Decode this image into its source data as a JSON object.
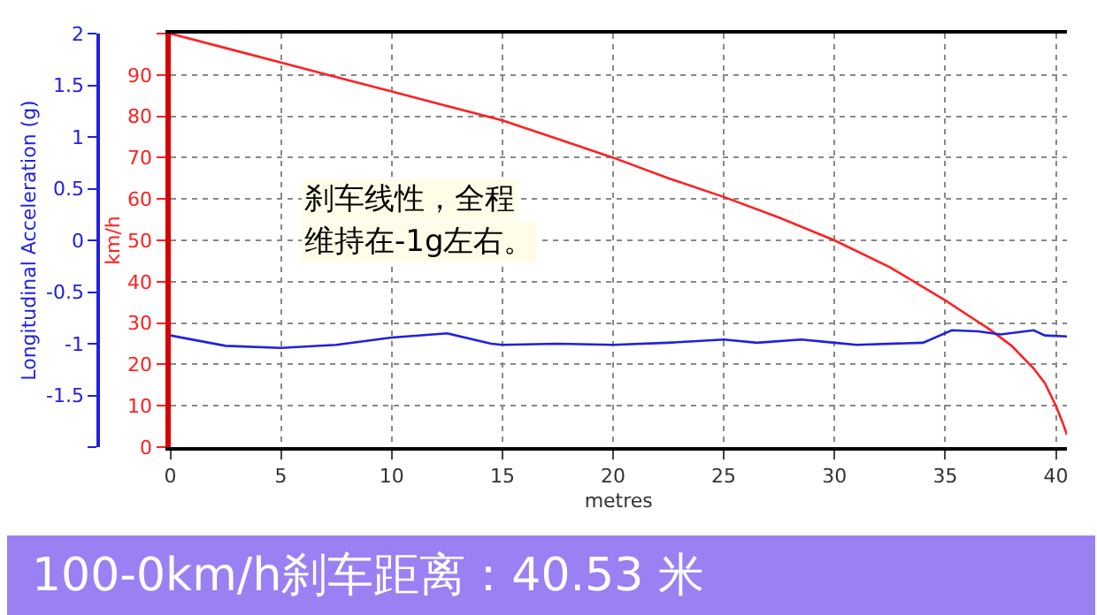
{
  "chart_data": {
    "type": "line",
    "title": "100-0km/h刹车距离：40.53 米",
    "xlabel": "metres",
    "ylabel": "km/h",
    "y2label": "Longitudinal Acceleration (g)",
    "annotations": [
      "刹车线性，全程",
      "维持在-1g左右。"
    ],
    "series": [
      {
        "color": "#ff2020",
        "x": [
          0,
          2.5,
          5,
          7.5,
          10,
          12.5,
          15,
          17.5,
          20,
          22.5,
          25,
          27.5,
          30,
          32.5,
          35,
          36,
          37,
          38,
          39,
          39.5,
          40,
          40.3,
          40.5
        ],
        "values": [
          100,
          96.5,
          93,
          89.5,
          86,
          82.5,
          79,
          74.5,
          70,
          65,
          60.5,
          55.5,
          50,
          43.5,
          35.5,
          32,
          28.5,
          24.5,
          19,
          15.5,
          10,
          6,
          3
        ]
      },
      {
        "color": "#2020e0",
        "axis": "y2",
        "x": [
          0,
          2.5,
          5,
          7.5,
          10,
          12.5,
          14.5,
          15,
          17.5,
          20,
          22.5,
          25,
          26.5,
          28.5,
          30,
          31,
          34,
          35.3,
          36.5,
          37.5,
          39,
          39.5,
          40.5
        ],
        "values": [
          -0.92,
          -1.02,
          -1.04,
          -1.01,
          -0.94,
          -0.9,
          -1.0,
          -1.01,
          -1.0,
          -1.01,
          -0.99,
          -0.96,
          -0.99,
          -0.96,
          -0.99,
          -1.01,
          -0.99,
          -0.87,
          -0.88,
          -0.91,
          -0.87,
          -0.92,
          -0.93
        ]
      }
    ],
    "xlim": [
      0,
      40.5
    ],
    "xticks": [
      0,
      5,
      10,
      15,
      20,
      25,
      30,
      35,
      40
    ],
    "ylim": [
      0,
      100
    ],
    "yticks": [
      0,
      10,
      20,
      30,
      40,
      50,
      60,
      70,
      80,
      90,
      {
        "value": 100,
        "label": null
      }
    ],
    "y2lim": [
      -2,
      2
    ],
    "y2ticks": [
      {
        "value": -2,
        "label": null
      },
      -1.5,
      -1,
      -0.5,
      0,
      0.5,
      1,
      1.5,
      2
    ],
    "grid": true,
    "line_style": "solid",
    "marker": "none"
  }
}
